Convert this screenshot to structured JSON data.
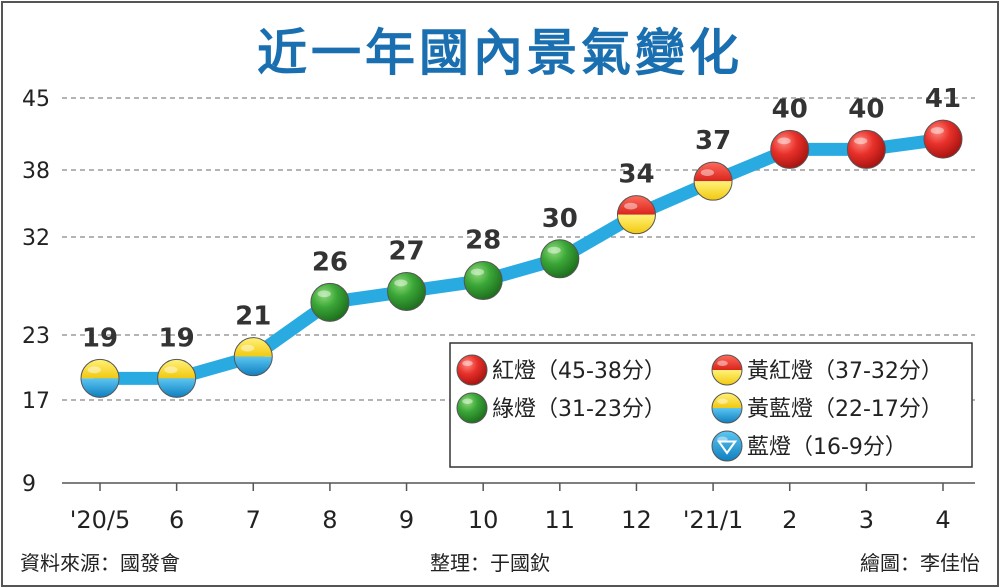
{
  "chart_data": {
    "type": "line",
    "title": "近一年國內景氣變化",
    "categories": [
      "'20/5",
      "6",
      "7",
      "8",
      "9",
      "10",
      "11",
      "12",
      "'21/1",
      "2",
      "3",
      "4"
    ],
    "values": [
      19,
      19,
      21,
      26,
      27,
      28,
      30,
      34,
      37,
      40,
      40,
      41
    ],
    "light": [
      "yellow-blue",
      "yellow-blue",
      "yellow-blue",
      "green",
      "green",
      "green",
      "green",
      "yellow-red",
      "yellow-red",
      "red",
      "red",
      "red"
    ],
    "yticks": [
      9,
      17,
      23,
      32,
      38,
      45
    ],
    "ylim": [
      9,
      45
    ],
    "grid": true,
    "legend_position": "bottom-right",
    "legend": [
      {
        "light": "red",
        "label": "紅燈（45-38分）"
      },
      {
        "light": "yellow-red",
        "label": "黃紅燈（37-32分）"
      },
      {
        "light": "green",
        "label": "綠燈（31-23分）"
      },
      {
        "light": "yellow-blue",
        "label": "黃藍燈（22-17分）"
      },
      {
        "light": "blue",
        "label": "藍燈（16-9分）"
      }
    ]
  },
  "footer": {
    "source": "資料來源：國發會",
    "compiler": "整理：于國欽",
    "illustrator": "繪圖：李佳怡"
  },
  "colors": {
    "title": "#1a6fb0",
    "line": "#29abe2",
    "red": "#e8302a",
    "yellow": "#f7d21e",
    "green": "#3aa637",
    "blue": "#1e9ad6"
  }
}
